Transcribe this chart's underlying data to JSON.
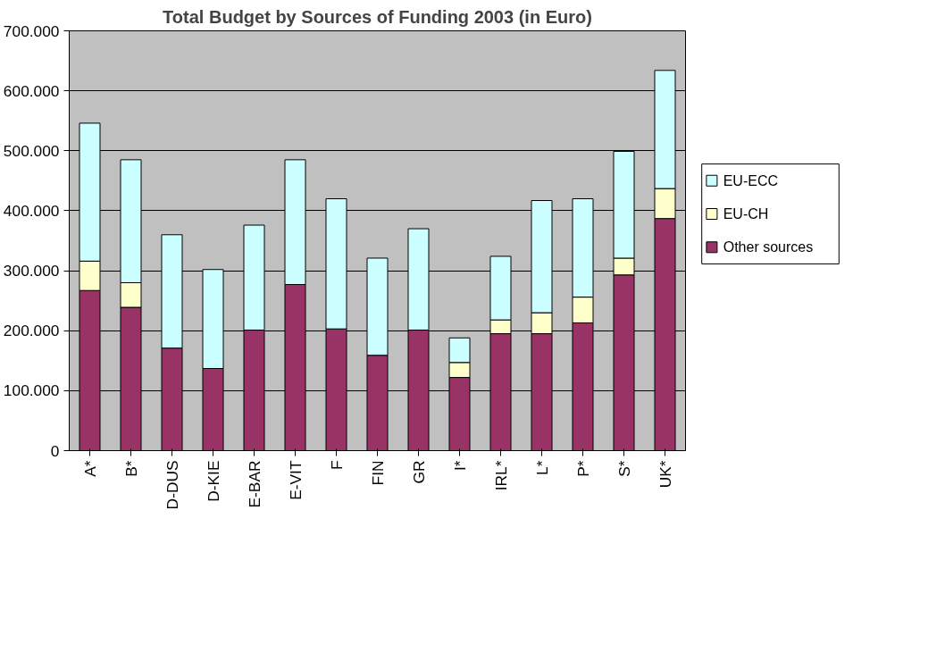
{
  "chart_data": {
    "type": "bar",
    "stacked": true,
    "title": "Total Budget by Sources of Funding 2003 (in Euro)",
    "categories": [
      "A*",
      "B*",
      "D-DUS",
      "D-KIE",
      "E-BAR",
      "E-VIT",
      "F",
      "FIN",
      "GR",
      "I*",
      "IRL*",
      "L*",
      "P*",
      "S*",
      "UK*"
    ],
    "series": [
      {
        "name": "Other sources",
        "color": "#993366",
        "values": [
          267000,
          239000,
          171000,
          137000,
          201000,
          277000,
          203000,
          159000,
          201000,
          122000,
          195000,
          195000,
          213000,
          293000,
          387000
        ]
      },
      {
        "name": "EU-CH",
        "color": "#ffffcc",
        "values": [
          49000,
          41000,
          null,
          null,
          null,
          null,
          null,
          null,
          null,
          25000,
          23000,
          35000,
          43000,
          28000,
          50000
        ]
      },
      {
        "name": "EU-ECC",
        "color": "#ccffff",
        "values": [
          230000,
          205000,
          189000,
          165000,
          175000,
          208000,
          217000,
          162000,
          169000,
          41000,
          106000,
          187000,
          164000,
          178000,
          197000
        ]
      }
    ],
    "ylim": [
      0,
      700000
    ],
    "yticks": [
      {
        "value": 0,
        "label": "0"
      },
      {
        "value": 100000,
        "label": "100.000"
      },
      {
        "value": 200000,
        "label": "200.000"
      },
      {
        "value": 300000,
        "label": "300.000"
      },
      {
        "value": 400000,
        "label": "400.000"
      },
      {
        "value": 500000,
        "label": "500.000"
      },
      {
        "value": 600000,
        "label": "600.000"
      },
      {
        "value": 700000,
        "label": "700.000"
      }
    ],
    "grid": "y",
    "legend": "right"
  }
}
